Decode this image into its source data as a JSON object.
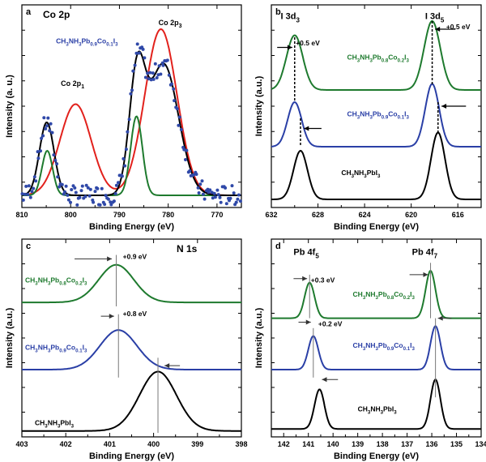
{
  "colors": {
    "red": "#e2211c",
    "green": "#1e7a2e",
    "blue": "#2a3fa6",
    "black": "#000000",
    "dots": "#2f48a8"
  },
  "chart_data": [
    {
      "type": "line",
      "panel_label": "a",
      "title": "Co 2p",
      "xlabel": "Binding Energy (eV)",
      "ylabel": "Intensity (a. u.)",
      "xlim": [
        810,
        765
      ],
      "x_reversed": true,
      "ylim": [
        0,
        1
      ],
      "x_ticks": [
        810,
        800,
        790,
        780,
        770
      ],
      "text_labels": [
        {
          "text": "Co 2p",
          "sub": "1",
          "x": 802,
          "y": 0.6
        },
        {
          "text": "Co 2p",
          "sub": "3",
          "x": 782,
          "y": 0.9
        },
        {
          "text": "CH",
          "formula": [
            "CH",
            "3",
            "NH",
            "3",
            "Pb",
            "0.9",
            "Co",
            "0.1",
            "I",
            "3"
          ],
          "x": 803,
          "y": 0.81,
          "color": "blue"
        }
      ],
      "series": [
        {
          "color": "red",
          "peaks": [
            [
              799.0,
              0.45,
              3.2
            ],
            [
              781.5,
              0.82,
              3.3
            ]
          ],
          "baseline": 0.06
        },
        {
          "color": "green",
          "peaks": [
            [
              804.8,
              0.22,
              1.1
            ],
            [
              786.5,
              0.39,
              1.2
            ]
          ],
          "baseline": 0.06
        },
        {
          "color": "black",
          "peaks": [
            [
              804.9,
              0.36,
              1.5
            ],
            [
              786.4,
              0.55,
              1.6
            ],
            [
              781.0,
              0.65,
              3.1
            ]
          ],
          "baseline": 0.06
        },
        {
          "color": "dots",
          "kind": "scatter"
        }
      ]
    },
    {
      "type": "line",
      "panel_label": "b",
      "xlabel": "Binding Energy (eV)",
      "ylabel": "Intensity (a.u.)",
      "xlim": [
        632,
        614
      ],
      "x_reversed": true,
      "ylim": [
        0,
        1
      ],
      "x_ticks": [
        632,
        628,
        624,
        620,
        616
      ],
      "peak_labels": [
        {
          "text": "I 3d",
          "sub": "3",
          "x": 631.2,
          "y": 0.93
        },
        {
          "text": "I 3d",
          "sub": "5",
          "x": 618.8,
          "y": 0.93
        }
      ],
      "annotations": [
        {
          "text": "+0.5 eV",
          "x": 629.9,
          "y": 0.8
        },
        {
          "text": "+0.5 eV",
          "x": 617.0,
          "y": 0.88
        }
      ],
      "series": [
        {
          "name": "CH3NH3Pb0.8Co0.2I3",
          "formula": [
            "CH",
            "3",
            "NH",
            "3",
            "Pb",
            "0.8",
            "Co",
            "0.2",
            "I",
            "3"
          ],
          "color": "green",
          "offset": 0.58,
          "peaks": [
            [
              630.0,
              0.27,
              0.7
            ],
            [
              618.2,
              0.34,
              0.7
            ]
          ]
        },
        {
          "name": "CH3NH3Pb0.9Co0.1I3",
          "formula": [
            "CH",
            "3",
            "NH",
            "3",
            "Pb",
            "0.9",
            "Co",
            "0.1",
            "I",
            "3"
          ],
          "color": "blue",
          "offset": 0.3,
          "peaks": [
            [
              630.0,
              0.22,
              0.6
            ],
            [
              618.2,
              0.31,
              0.6
            ]
          ]
        },
        {
          "name": "CH3NH3PbI3",
          "formula": [
            "CH",
            "3",
            "NH",
            "3",
            "PbI",
            "3"
          ],
          "color": "black",
          "offset": 0.04,
          "peaks": [
            [
              629.5,
              0.24,
              0.6
            ],
            [
              617.7,
              0.33,
              0.6
            ]
          ]
        }
      ]
    },
    {
      "type": "line",
      "panel_label": "c",
      "title": "N 1s",
      "xlabel": "Binding Energy (eV)",
      "ylabel": "Intensity (a.u.)",
      "xlim": [
        403,
        398
      ],
      "x_reversed": true,
      "ylim": [
        0,
        1
      ],
      "x_ticks": [
        403,
        402,
        401,
        400,
        399,
        398
      ],
      "annotations": [
        {
          "text": "+0.9 eV",
          "x": 400.7,
          "y": 0.9
        },
        {
          "text": "+0.8 eV",
          "x": 400.7,
          "y": 0.61
        }
      ],
      "series": [
        {
          "name": "CH3NH3Pb0.8Co0.2I3",
          "formula": [
            "CH",
            "3",
            "NH",
            "3",
            "Pb",
            "0.8",
            "Co",
            "0.2",
            "I",
            "3"
          ],
          "color": "green",
          "offset": 0.68,
          "peaks": [
            [
              400.85,
              0.19,
              0.4
            ]
          ]
        },
        {
          "name": "CH3NH3Pb0.9Co0.1I3",
          "formula": [
            "CH",
            "3",
            "NH",
            "3",
            "Pb",
            "0.9",
            "Co",
            "0.1",
            "I",
            "3"
          ],
          "color": "blue",
          "offset": 0.34,
          "peaks": [
            [
              400.8,
              0.2,
              0.42
            ]
          ]
        },
        {
          "name": "CH3NH3PbI3",
          "formula": [
            "CH",
            "3",
            "NH",
            "3",
            "PbI",
            "3"
          ],
          "color": "black",
          "offset": 0.03,
          "peaks": [
            [
              399.9,
              0.3,
              0.42
            ]
          ]
        }
      ]
    },
    {
      "type": "line",
      "panel_label": "d",
      "xlabel": "Binding Energy (eV)",
      "ylabel": "Intensity (a.u.)",
      "xlim": [
        142.5,
        134
      ],
      "x_reversed": true,
      "ylim": [
        0,
        1
      ],
      "x_ticks": [
        142,
        141,
        140,
        139,
        138,
        137,
        136,
        135,
        134
      ],
      "peak_labels": [
        {
          "text": "Pb 4f",
          "sub": "5",
          "x": 141.6,
          "y": 0.92
        },
        {
          "text": "Pb 4f",
          "sub": "7",
          "x": 136.8,
          "y": 0.92
        }
      ],
      "annotations": [
        {
          "text": "+0.3 eV",
          "x": 140.9,
          "y": 0.78
        },
        {
          "text": "+0.2 eV",
          "x": 140.6,
          "y": 0.56
        }
      ],
      "series": [
        {
          "name": "CH3NH3Pb0.8Co0.2I3",
          "formula": [
            "CH",
            "3",
            "NH",
            "3",
            "Pb",
            "0.8",
            "Co",
            "0.2",
            "I",
            "3"
          ],
          "color": "green",
          "offset": 0.6,
          "peaks": [
            [
              140.95,
              0.18,
              0.2
            ],
            [
              136.05,
              0.24,
              0.2
            ]
          ]
        },
        {
          "name": "CH3NH3Pb0.9Co0.1I3",
          "formula": [
            "CH",
            "3",
            "NH",
            "3",
            "Pb",
            "0.9",
            "Co",
            "0.1",
            "I",
            "3"
          ],
          "color": "blue",
          "offset": 0.34,
          "peaks": [
            [
              140.8,
              0.17,
              0.2
            ],
            [
              135.85,
              0.22,
              0.2
            ]
          ]
        },
        {
          "name": "CH3NH3PbI3",
          "formula": [
            "CH",
            "3",
            "NH",
            "3",
            "PbI",
            "3"
          ],
          "color": "black",
          "offset": 0.04,
          "peaks": [
            [
              140.55,
              0.2,
              0.2
            ],
            [
              135.85,
              0.25,
              0.2
            ]
          ]
        }
      ]
    }
  ]
}
